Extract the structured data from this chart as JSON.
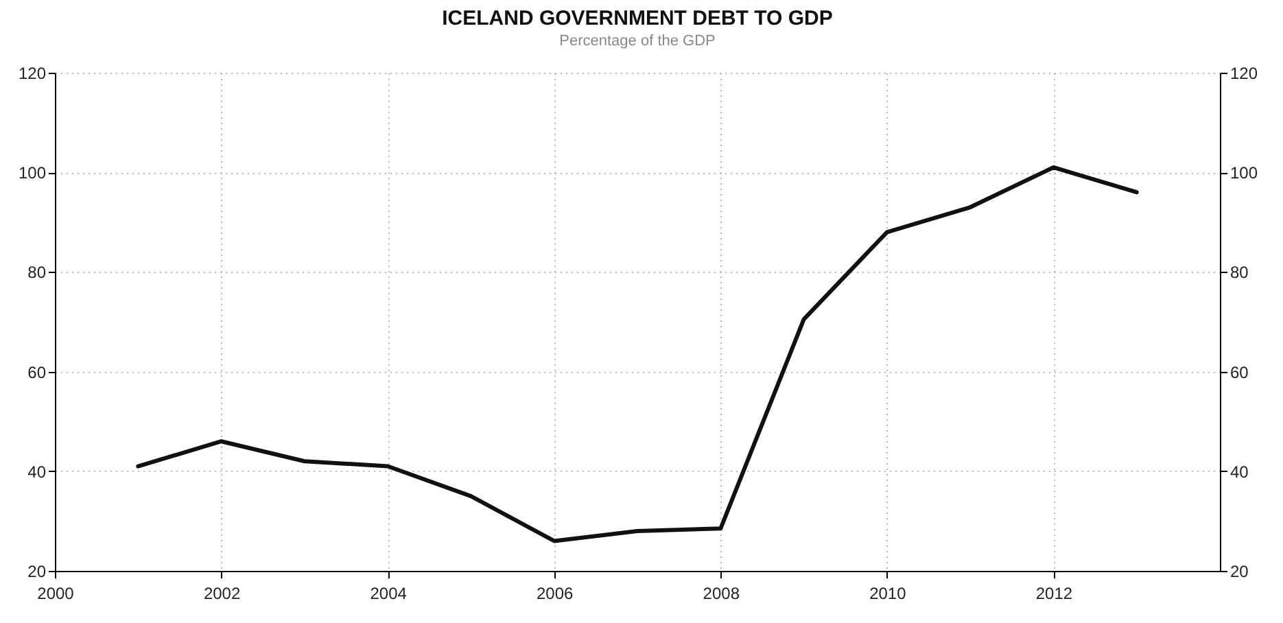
{
  "chart_data": {
    "type": "line",
    "title": "ICELAND GOVERNMENT DEBT TO GDP",
    "subtitle": "Percentage of the GDP",
    "x": [
      2001,
      2002,
      2003,
      2004,
      2005,
      2006,
      2007,
      2008,
      2009,
      2010,
      2011,
      2012,
      2013
    ],
    "series": [
      {
        "color": "#111111",
        "values": [
          41,
          46,
          42,
          41,
          35,
          26,
          28,
          28.5,
          70.5,
          88,
          93,
          101,
          96
        ]
      }
    ],
    "xlim": [
      2000,
      2014
    ],
    "xticks": [
      2000,
      2002,
      2004,
      2006,
      2008,
      2010,
      2012
    ],
    "ylim": [
      20,
      120
    ],
    "yticks": [
      20,
      40,
      60,
      80,
      100,
      120
    ],
    "y2lim": [
      20,
      120
    ],
    "y2ticks": [
      20,
      40,
      60,
      80,
      100,
      120
    ],
    "grid": true,
    "marker": "none",
    "line_style": "solid"
  }
}
